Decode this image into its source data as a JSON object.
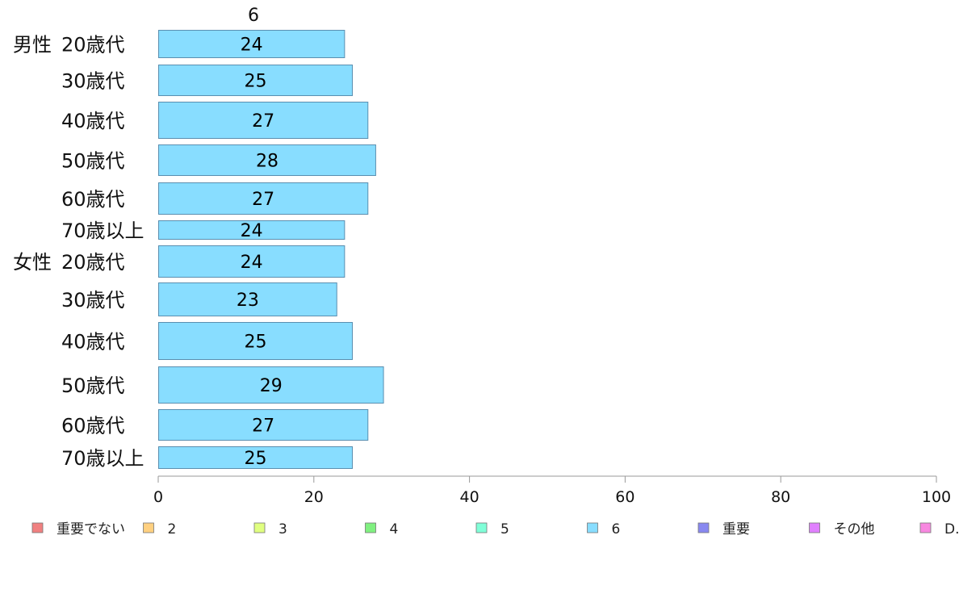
{
  "chart_data": {
    "type": "bar",
    "orientation": "horizontal",
    "stacked": true,
    "column_header": "6",
    "groups": [
      {
        "label": "男性",
        "categories": [
          "20歳代",
          "30歳代",
          "40歳代",
          "50歳代",
          "60歳代",
          "70歳以上"
        ]
      },
      {
        "label": "女性",
        "categories": [
          "20歳代",
          "30歳代",
          "40歳代",
          "50歳代",
          "60歳代",
          "70歳以上"
        ]
      }
    ],
    "series": [
      {
        "name": "6",
        "color": "#88ddff",
        "values": [
          24,
          25,
          27,
          28,
          27,
          24,
          24,
          23,
          25,
          29,
          27,
          25
        ]
      }
    ],
    "xlim": [
      0,
      100
    ],
    "xticks": [
      "0",
      "20",
      "40",
      "60",
      "80",
      "100"
    ],
    "grid": false,
    "legend_position": "bottom",
    "legend": [
      {
        "label": "重要でない",
        "color": "#f08080"
      },
      {
        "label": "2",
        "color": "#ffd080"
      },
      {
        "label": "3",
        "color": "#e0ff80"
      },
      {
        "label": "4",
        "color": "#80f080"
      },
      {
        "label": "5",
        "color": "#80ffd8"
      },
      {
        "label": "6",
        "color": "#88ddff"
      },
      {
        "label": "重要",
        "color": "#8888f0"
      },
      {
        "label": "その他",
        "color": "#e080ff"
      },
      {
        "label": "D.K",
        "color": "#f888e0"
      }
    ]
  }
}
